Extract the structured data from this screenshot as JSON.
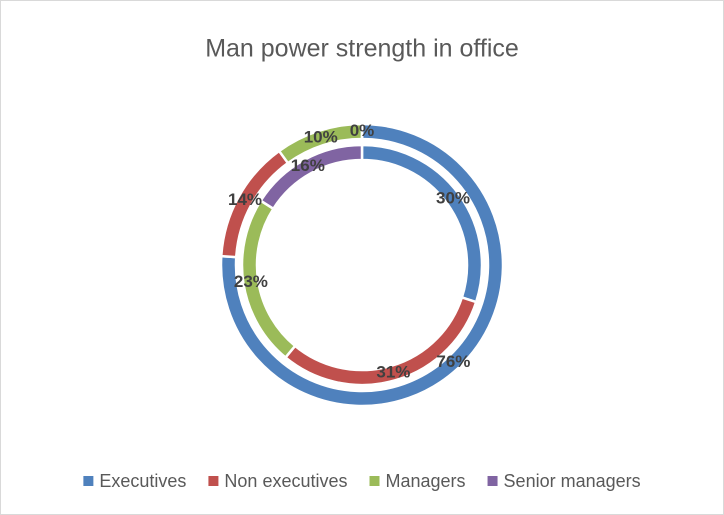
{
  "chart_data": {
    "type": "doughnut",
    "title": "Man power strength in office",
    "categories": [
      "Executives",
      "Non executives",
      "Managers",
      "Senior managers"
    ],
    "colors": [
      "#4f81bd",
      "#c0504d",
      "#9bbb59",
      "#8064a2"
    ],
    "series": [
      {
        "values": [
          76,
          14,
          10,
          0
        ],
        "value_labels": [
          "76%",
          "14%",
          "10%",
          "0%"
        ]
      },
      {
        "values": [
          30,
          31,
          23,
          16
        ],
        "value_labels": [
          "30%",
          "31%",
          "23%",
          "16%"
        ]
      }
    ],
    "legend": "bottom"
  }
}
